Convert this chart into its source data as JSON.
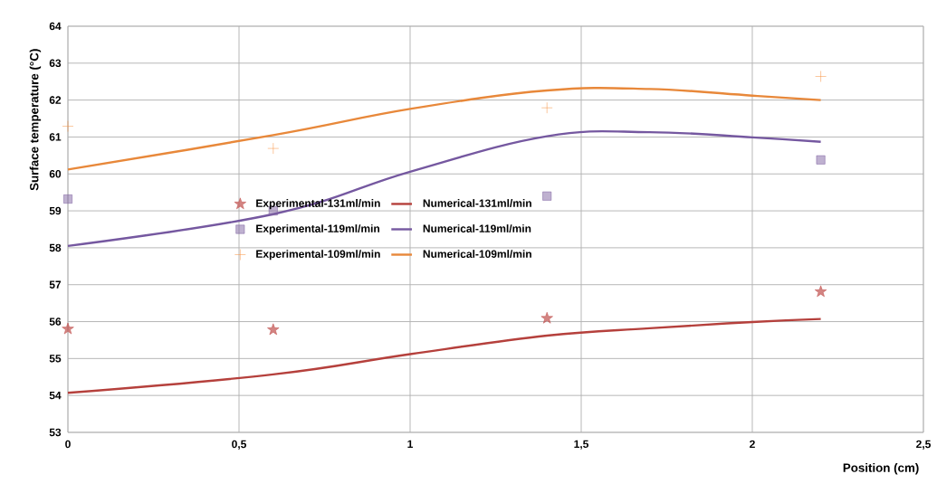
{
  "chart_data": {
    "type": "line",
    "xlabel": "Position (cm)",
    "ylabel": "Surface temperature (°C)",
    "xlim": [
      0,
      2.5
    ],
    "ylim": [
      53,
      64
    ],
    "xticks": [
      0,
      {
        "value": 0.5,
        "label": "0,5"
      },
      1,
      {
        "value": 1.5,
        "label": "1,5"
      },
      2,
      {
        "value": 2.5,
        "label": "2,5"
      }
    ],
    "yticks": [
      53,
      54,
      55,
      56,
      57,
      58,
      59,
      60,
      61,
      62,
      63,
      64
    ],
    "grid": true,
    "legend": "left",
    "series": [
      {
        "name": "Experimental-131ml/min",
        "type": "scatter",
        "marker": "star",
        "color": "#c0504d",
        "x": [
          0,
          0.6,
          1.4,
          2.2
        ],
        "values": [
          55.8,
          55.78,
          56.09,
          56.81
        ]
      },
      {
        "name": "Numerical-131ml/min",
        "type": "line",
        "marker": "none",
        "color": "#b5403c",
        "x": [
          0,
          0.6,
          1.0,
          1.4,
          1.7,
          2.0,
          2.2
        ],
        "values": [
          54.07,
          54.57,
          55.12,
          55.62,
          55.82,
          55.99,
          56.07
        ]
      },
      {
        "name": "Experimental-119ml/min",
        "type": "scatter",
        "marker": "square",
        "color": "#8064a2",
        "x": [
          0,
          0.6,
          1.4,
          2.2
        ],
        "values": [
          59.32,
          59.0,
          59.4,
          60.38
        ]
      },
      {
        "name": "Numerical-119ml/min",
        "type": "line",
        "marker": "none",
        "color": "#7558a0",
        "x": [
          0,
          0.6,
          1.0,
          1.4,
          1.7,
          2.0,
          2.2
        ],
        "values": [
          58.05,
          58.91,
          60.06,
          61.02,
          61.13,
          60.99,
          60.87
        ]
      },
      {
        "name": "Experimental-109ml/min",
        "type": "scatter",
        "marker": "cross",
        "color": "#f79646",
        "x": [
          0,
          0.6,
          1.4,
          2.2
        ],
        "values": [
          61.29,
          60.69,
          61.79,
          62.64
        ]
      },
      {
        "name": "Numerical-109ml/min",
        "type": "line",
        "marker": "none",
        "color": "#e8883a",
        "x": [
          0,
          0.6,
          1.0,
          1.4,
          1.7,
          2.0,
          2.2
        ],
        "values": [
          60.12,
          61.05,
          61.76,
          62.26,
          62.3,
          62.12,
          62.0
        ]
      }
    ]
  }
}
